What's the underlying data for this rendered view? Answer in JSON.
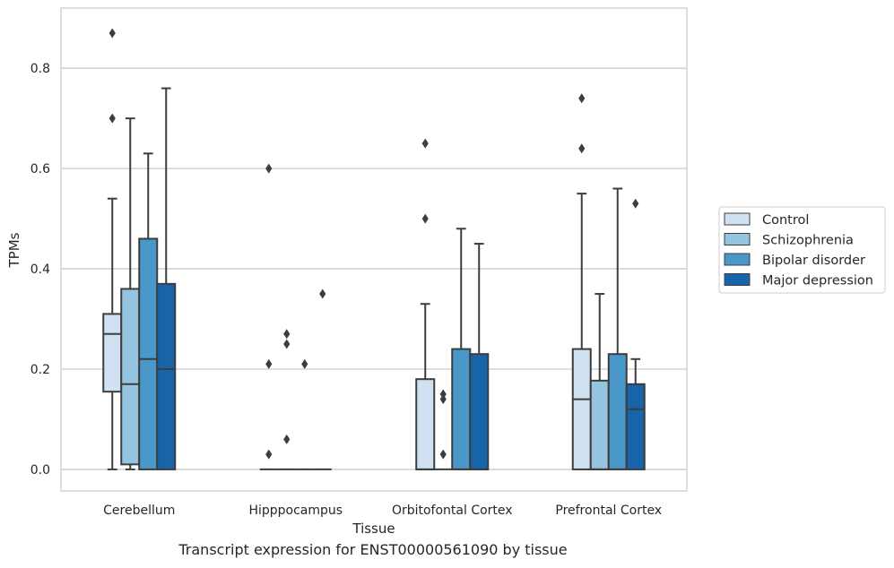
{
  "caption": "Transcript expression for ENST00000561090 by tissue",
  "chart_data": {
    "type": "box",
    "xlabel": "Tissue",
    "ylabel": "TPMs",
    "ylim": [
      -0.043,
      0.92
    ],
    "yticks": [
      "0.0",
      "0.2",
      "0.4",
      "0.6",
      "0.8"
    ],
    "ytick_values": [
      0,
      0.2,
      0.4,
      0.6,
      0.8
    ],
    "grid": "horizontal",
    "legend_position": "right",
    "categories": [
      "Cerebellum",
      "Hipppocampus",
      "Orbitofontal Cortex",
      "Prefrontal Cortex"
    ],
    "series": [
      {
        "name": "Control",
        "color": "#d0e1f2",
        "boxes": [
          {
            "q1": 0.155,
            "median": 0.27,
            "q3": 0.31,
            "whisker_low": 0.0,
            "whisker_high": 0.54,
            "outliers": [
              0.87,
              0.7
            ]
          },
          {
            "q1": 0.0,
            "median": 0.0,
            "q3": 0.0,
            "whisker_low": 0.0,
            "whisker_high": 0.0,
            "outliers": [
              0.6,
              0.21,
              0.03
            ]
          },
          {
            "q1": 0.0,
            "median": 0.0,
            "q3": 0.18,
            "whisker_low": 0.0,
            "whisker_high": 0.33,
            "outliers": [
              0.65,
              0.5
            ]
          },
          {
            "q1": 0.0,
            "median": 0.14,
            "q3": 0.24,
            "whisker_low": 0.0,
            "whisker_high": 0.55,
            "outliers": [
              0.74,
              0.64
            ]
          }
        ]
      },
      {
        "name": "Schizophrenia",
        "color": "#94c4df",
        "boxes": [
          {
            "q1": 0.01,
            "median": 0.17,
            "q3": 0.36,
            "whisker_low": 0.0,
            "whisker_high": 0.7,
            "outliers": []
          },
          {
            "q1": 0.0,
            "median": 0.0,
            "q3": 0.0,
            "whisker_low": 0.0,
            "whisker_high": 0.0,
            "outliers": [
              0.27,
              0.25,
              0.06
            ]
          },
          {
            "q1": 0.0,
            "median": 0.0,
            "q3": 0.0,
            "whisker_low": 0.0,
            "whisker_high": 0.0,
            "outliers": [
              0.15,
              0.14,
              0.03
            ]
          },
          {
            "q1": 0.0,
            "median": 0.0,
            "q3": 0.177,
            "whisker_low": 0.0,
            "whisker_high": 0.35,
            "outliers": []
          }
        ]
      },
      {
        "name": "Bipolar disorder",
        "color": "#4a98c9",
        "boxes": [
          {
            "q1": 0.0,
            "median": 0.22,
            "q3": 0.46,
            "whisker_low": 0.0,
            "whisker_high": 0.63,
            "outliers": []
          },
          {
            "q1": 0.0,
            "median": 0.0,
            "q3": 0.0,
            "whisker_low": 0.0,
            "whisker_high": 0.0,
            "outliers": [
              0.21
            ]
          },
          {
            "q1": 0.0,
            "median": 0.0,
            "q3": 0.24,
            "whisker_low": 0.0,
            "whisker_high": 0.48,
            "outliers": []
          },
          {
            "q1": 0.0,
            "median": 0.0,
            "q3": 0.23,
            "whisker_low": 0.0,
            "whisker_high": 0.56,
            "outliers": []
          }
        ]
      },
      {
        "name": "Major depression",
        "color": "#1764ab",
        "boxes": [
          {
            "q1": 0.0,
            "median": 0.2,
            "q3": 0.37,
            "whisker_low": 0.0,
            "whisker_high": 0.76,
            "outliers": []
          },
          {
            "q1": 0.0,
            "median": 0.0,
            "q3": 0.0,
            "whisker_low": 0.0,
            "whisker_high": 0.0,
            "outliers": [
              0.35
            ]
          },
          {
            "q1": 0.0,
            "median": 0.0,
            "q3": 0.23,
            "whisker_low": 0.0,
            "whisker_high": 0.45,
            "outliers": []
          },
          {
            "q1": 0.0,
            "median": 0.12,
            "q3": 0.17,
            "whisker_low": 0.0,
            "whisker_high": 0.22,
            "outliers": [
              0.53
            ]
          }
        ]
      }
    ]
  }
}
